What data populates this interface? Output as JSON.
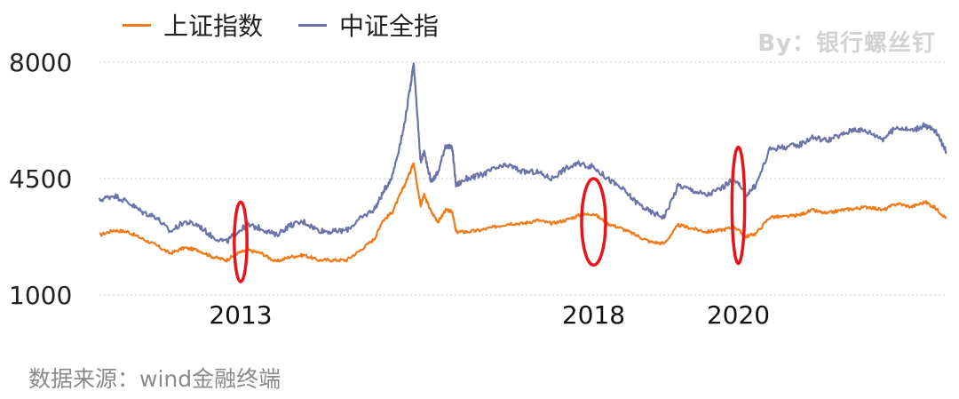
{
  "legend": {
    "items": [
      {
        "label": "上证指数",
        "color": "#F07A18"
      },
      {
        "label": "中证全指",
        "color": "#6B73A8"
      }
    ]
  },
  "watermark": "By：银行螺丝钉",
  "source": "数据来源：wind金融终端",
  "chart_data": {
    "type": "line",
    "ylim": [
      1000,
      8000
    ],
    "yticks": [
      1000,
      4500,
      8000
    ],
    "ytick_labels": [
      "1000",
      "4500",
      "8000"
    ],
    "xlim": [
      2011.0,
      2023.0
    ],
    "xtick_labels": [
      {
        "label": "2013",
        "x": 2013.0
      },
      {
        "label": "2018",
        "x": 2018.0
      },
      {
        "label": "2020",
        "x": 2020.05
      }
    ],
    "grid": true,
    "legend_position": "top-left",
    "series": [
      {
        "name": "上证指数",
        "color": "#F07A18",
        "points": [
          [
            2011.0,
            2800
          ],
          [
            2011.2,
            2950
          ],
          [
            2011.4,
            2900
          ],
          [
            2011.6,
            2700
          ],
          [
            2011.8,
            2500
          ],
          [
            2012.0,
            2250
          ],
          [
            2012.2,
            2420
          ],
          [
            2012.4,
            2350
          ],
          [
            2012.6,
            2150
          ],
          [
            2012.8,
            2050
          ],
          [
            2012.95,
            2250
          ],
          [
            2013.1,
            2350
          ],
          [
            2013.3,
            2250
          ],
          [
            2013.5,
            2000
          ],
          [
            2013.7,
            2150
          ],
          [
            2013.9,
            2200
          ],
          [
            2014.1,
            2050
          ],
          [
            2014.3,
            2050
          ],
          [
            2014.5,
            2050
          ],
          [
            2014.7,
            2350
          ],
          [
            2014.9,
            2700
          ],
          [
            2015.0,
            3200
          ],
          [
            2015.15,
            3500
          ],
          [
            2015.3,
            4200
          ],
          [
            2015.4,
            4700
          ],
          [
            2015.45,
            5000
          ],
          [
            2015.5,
            4300
          ],
          [
            2015.55,
            3700
          ],
          [
            2015.6,
            4000
          ],
          [
            2015.7,
            3500
          ],
          [
            2015.8,
            3200
          ],
          [
            2015.9,
            3550
          ],
          [
            2016.0,
            3500
          ],
          [
            2016.05,
            2900
          ],
          [
            2016.2,
            2900
          ],
          [
            2016.4,
            2950
          ],
          [
            2016.6,
            3050
          ],
          [
            2016.8,
            3150
          ],
          [
            2017.0,
            3150
          ],
          [
            2017.2,
            3250
          ],
          [
            2017.4,
            3150
          ],
          [
            2017.6,
            3250
          ],
          [
            2017.8,
            3400
          ],
          [
            2018.0,
            3450
          ],
          [
            2018.2,
            3150
          ],
          [
            2018.4,
            3000
          ],
          [
            2018.6,
            2800
          ],
          [
            2018.8,
            2600
          ],
          [
            2019.0,
            2550
          ],
          [
            2019.2,
            3100
          ],
          [
            2019.4,
            3000
          ],
          [
            2019.6,
            2900
          ],
          [
            2019.8,
            2950
          ],
          [
            2020.0,
            3050
          ],
          [
            2020.15,
            2750
          ],
          [
            2020.3,
            2850
          ],
          [
            2020.5,
            3350
          ],
          [
            2020.7,
            3350
          ],
          [
            2020.9,
            3400
          ],
          [
            2021.1,
            3550
          ],
          [
            2021.3,
            3450
          ],
          [
            2021.5,
            3550
          ],
          [
            2021.7,
            3600
          ],
          [
            2021.9,
            3650
          ],
          [
            2022.1,
            3550
          ],
          [
            2022.3,
            3750
          ],
          [
            2022.5,
            3650
          ],
          [
            2022.7,
            3800
          ],
          [
            2022.85,
            3600
          ],
          [
            2023.0,
            3300
          ]
        ]
      },
      {
        "name": "中证全指",
        "color": "#6B73A8",
        "points": [
          [
            2011.0,
            3850
          ],
          [
            2011.2,
            4000
          ],
          [
            2011.4,
            3800
          ],
          [
            2011.6,
            3500
          ],
          [
            2011.8,
            3350
          ],
          [
            2012.0,
            2900
          ],
          [
            2012.2,
            3200
          ],
          [
            2012.4,
            3100
          ],
          [
            2012.6,
            2750
          ],
          [
            2012.8,
            2600
          ],
          [
            2012.95,
            2900
          ],
          [
            2013.1,
            3100
          ],
          [
            2013.3,
            3000
          ],
          [
            2013.5,
            2800
          ],
          [
            2013.7,
            3100
          ],
          [
            2013.9,
            3200
          ],
          [
            2014.1,
            2950
          ],
          [
            2014.3,
            2900
          ],
          [
            2014.5,
            2950
          ],
          [
            2014.7,
            3300
          ],
          [
            2014.9,
            3600
          ],
          [
            2015.0,
            4000
          ],
          [
            2015.15,
            4600
          ],
          [
            2015.3,
            5900
          ],
          [
            2015.4,
            7200
          ],
          [
            2015.45,
            8000
          ],
          [
            2015.5,
            6500
          ],
          [
            2015.55,
            5000
          ],
          [
            2015.6,
            5300
          ],
          [
            2015.7,
            4400
          ],
          [
            2015.8,
            4700
          ],
          [
            2015.9,
            5500
          ],
          [
            2016.0,
            5400
          ],
          [
            2016.05,
            4300
          ],
          [
            2016.2,
            4500
          ],
          [
            2016.4,
            4600
          ],
          [
            2016.6,
            4800
          ],
          [
            2016.8,
            4900
          ],
          [
            2017.0,
            4700
          ],
          [
            2017.2,
            4700
          ],
          [
            2017.4,
            4500
          ],
          [
            2017.6,
            4800
          ],
          [
            2017.8,
            4950
          ],
          [
            2018.0,
            4850
          ],
          [
            2018.2,
            4500
          ],
          [
            2018.4,
            4200
          ],
          [
            2018.6,
            3800
          ],
          [
            2018.8,
            3500
          ],
          [
            2019.0,
            3350
          ],
          [
            2019.2,
            4300
          ],
          [
            2019.4,
            4150
          ],
          [
            2019.6,
            4000
          ],
          [
            2019.8,
            4200
          ],
          [
            2020.0,
            4500
          ],
          [
            2020.15,
            4000
          ],
          [
            2020.3,
            4300
          ],
          [
            2020.5,
            5400
          ],
          [
            2020.7,
            5450
          ],
          [
            2020.9,
            5500
          ],
          [
            2021.1,
            5750
          ],
          [
            2021.3,
            5650
          ],
          [
            2021.5,
            5800
          ],
          [
            2021.7,
            6000
          ],
          [
            2021.9,
            5900
          ],
          [
            2022.1,
            5700
          ],
          [
            2022.3,
            6050
          ],
          [
            2022.5,
            5950
          ],
          [
            2022.7,
            6100
          ],
          [
            2022.85,
            5900
          ],
          [
            2023.0,
            5300
          ]
        ]
      }
    ],
    "annotations": [
      {
        "shape": "ellipse",
        "cx": 2013.0,
        "cy": 2600,
        "rx": 0.09,
        "ry": 1200,
        "color": "#E8141B"
      },
      {
        "shape": "ellipse",
        "cx": 2018.0,
        "cy": 3200,
        "rx": 0.17,
        "ry": 1300,
        "color": "#E8141B"
      },
      {
        "shape": "ellipse",
        "cx": 2020.05,
        "cy": 3700,
        "rx": 0.09,
        "ry": 1750,
        "color": "#E8141B"
      }
    ]
  }
}
